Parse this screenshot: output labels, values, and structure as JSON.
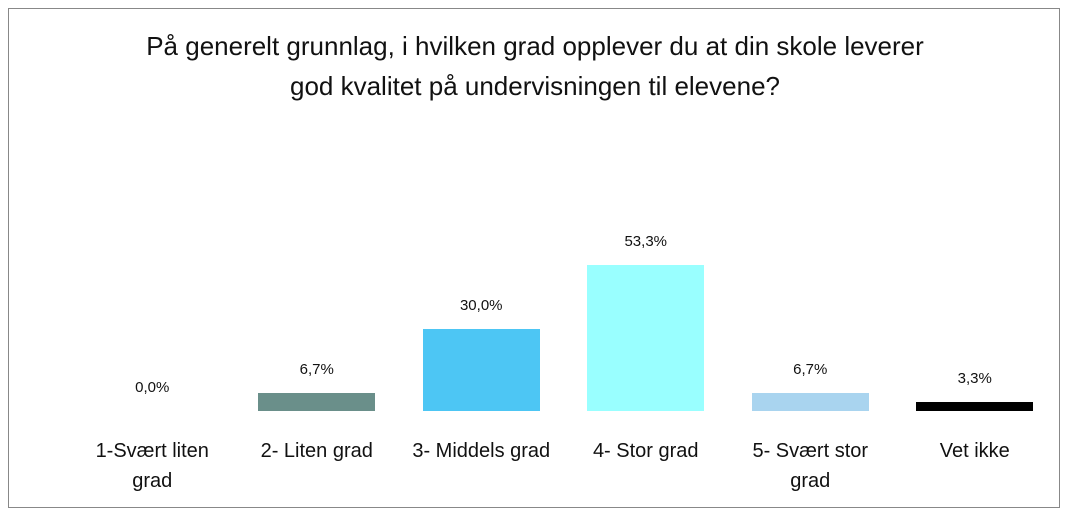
{
  "chart_data": {
    "type": "bar",
    "title": "På generelt grunnlag, i hvilken grad opplever du at din skole leverer god kvalitet på undervisningen til elevene?",
    "categories": [
      "1-Svært liten grad",
      "2- Liten grad",
      "3- Middels grad",
      "4- Stor grad",
      "5- Svært stor grad",
      "Vet ikke"
    ],
    "values": [
      0,
      6.7,
      30,
      53.3,
      6.7,
      3.3
    ],
    "value_labels": [
      "0,0%",
      "6,7%",
      "30,0%",
      "53,3%",
      "6,7%",
      "3,3%"
    ],
    "colors": [
      "#6a8f8a",
      "#6a8f8a",
      "#4dc6f4",
      "#99ffff",
      "#a9d4ef",
      "#000000"
    ]
  }
}
